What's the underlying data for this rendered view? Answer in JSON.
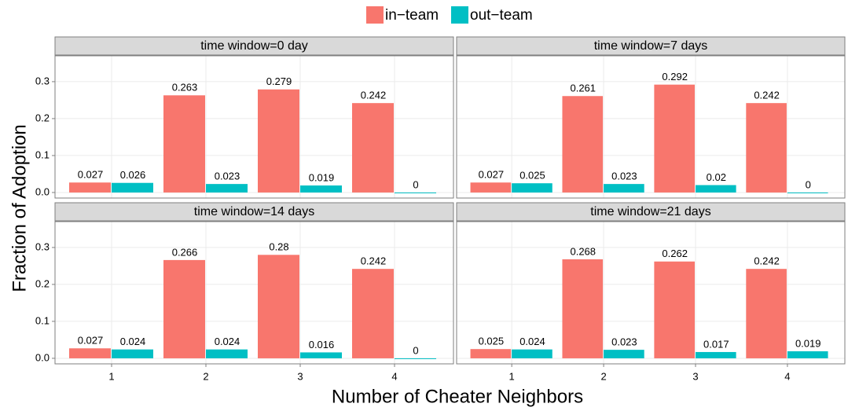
{
  "chart_data": [
    {
      "type": "bar",
      "title": "time window=0 day",
      "x_label": "Number of Cheater Neighbors",
      "y_label": "Fraction of Adoption",
      "categories": [
        "1",
        "2",
        "3",
        "4"
      ],
      "series": [
        {
          "name": "in−team",
          "color": "#F8766D",
          "values": [
            0.027,
            0.263,
            0.279,
            0.242
          ]
        },
        {
          "name": "out−team",
          "color": "#00BFC4",
          "values": [
            0.026,
            0.023,
            0.019,
            0
          ]
        }
      ],
      "ylim": [
        -0.015,
        0.37
      ],
      "yticks": [
        {
          "value": 0,
          "label": "0.0"
        },
        0.1,
        0.2,
        0.3
      ],
      "grid": true
    },
    {
      "type": "bar",
      "title": "time window=7 days",
      "categories": [
        "1",
        "2",
        "3",
        "4"
      ],
      "series": [
        {
          "name": "in−team",
          "color": "#F8766D",
          "values": [
            0.027,
            0.261,
            0.292,
            0.242
          ]
        },
        {
          "name": "out−team",
          "color": "#00BFC4",
          "values": [
            0.025,
            0.023,
            0.02,
            0
          ]
        }
      ],
      "ylim": [
        -0.015,
        0.37
      ],
      "yticks": [
        {
          "value": 0,
          "label": "0.0"
        },
        0.1,
        0.2,
        0.3
      ],
      "grid": true
    },
    {
      "type": "bar",
      "title": "time window=14 days",
      "categories": [
        "1",
        "2",
        "3",
        "4"
      ],
      "series": [
        {
          "name": "in−team",
          "color": "#F8766D",
          "values": [
            0.027,
            0.266,
            0.28,
            0.242
          ]
        },
        {
          "name": "out−team",
          "color": "#00BFC4",
          "values": [
            0.024,
            0.024,
            0.016,
            0
          ]
        }
      ],
      "ylim": [
        -0.015,
        0.37
      ],
      "yticks": [
        {
          "value": 0,
          "label": "0.0"
        },
        0.1,
        0.2,
        0.3
      ],
      "grid": true
    },
    {
      "type": "bar",
      "title": "time window=21 days",
      "categories": [
        "1",
        "2",
        "3",
        "4"
      ],
      "series": [
        {
          "name": "in−team",
          "color": "#F8766D",
          "values": [
            0.025,
            0.268,
            0.262,
            0.242
          ]
        },
        {
          "name": "out−team",
          "color": "#00BFC4",
          "values": [
            0.024,
            0.023,
            0.017,
            0.019
          ]
        }
      ],
      "ylim": [
        -0.015,
        0.37
      ],
      "yticks": [
        {
          "value": 0,
          "label": "0.0"
        },
        0.1,
        0.2,
        0.3
      ],
      "grid": true
    }
  ]
}
